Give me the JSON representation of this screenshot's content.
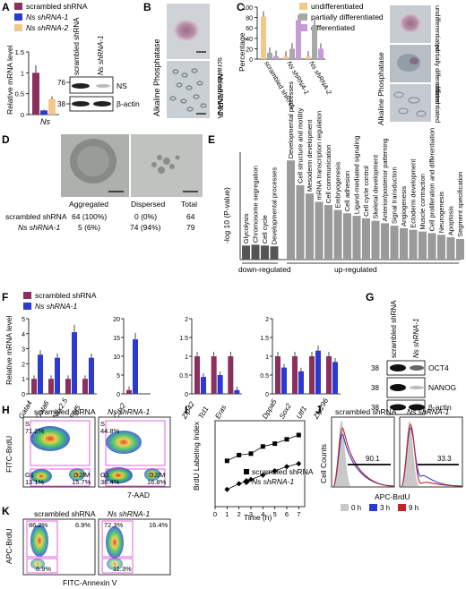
{
  "panels": [
    "A",
    "B",
    "C",
    "D",
    "E",
    "F",
    "G",
    "H",
    "I",
    "J",
    "K"
  ],
  "colors": {
    "scrambled": "#8b2f5c",
    "sh1": "#2b3bd1",
    "sh2": "#f1c88a",
    "undiff": "#f3c98b",
    "partial": "#a8a8a8",
    "diff": "#c79bd8",
    "bar_grey": "#9a9a9a",
    "bar_dark": "#555555"
  },
  "panelA": {
    "legend": [
      "scrambled shRNA",
      "Ns shRNA-1",
      "Ns shRNA-2"
    ],
    "ylabel": "Relative mRNA level",
    "xlabel": "Ns",
    "yticks": [
      "0",
      "0.5",
      "1",
      "1.5"
    ],
    "blot_lanes": [
      "scrambled shRNA",
      "Ns shRNA-1"
    ],
    "blot_rows": [
      "NS",
      "β-actin"
    ],
    "mw": [
      "76",
      "38"
    ]
  },
  "panelB": {
    "stain": "Alkaline Phosphatase",
    "rows": [
      "scrambled shRNA",
      "Ns shRNA-1"
    ]
  },
  "panelC": {
    "legend": [
      "undifferentiated",
      "partially differentiated",
      "differentiated"
    ],
    "ylabel": "Percentage",
    "yticks": [
      "0",
      "20",
      "40",
      "60",
      "80",
      "100"
    ],
    "groups": [
      "scrambled shRNA",
      "Ns shRNA-1",
      "Ns shRNA-2"
    ],
    "stain": "Alkaline Phosphatase",
    "side_labels": [
      "undifferentiated",
      "partially differentiated",
      "differentiated"
    ]
  },
  "panelD": {
    "headers": [
      "Aggregated",
      "Dispersed",
      "Total"
    ],
    "rows": [
      {
        "name": "scrambled shRNA",
        "agg": "64 (100%)",
        "disp": "0 (0%)",
        "total": "64"
      },
      {
        "name": "Ns shRNA-1",
        "agg": "5 (6%)",
        "disp": "74 (94%)",
        "total": "79"
      }
    ]
  },
  "panelE": {
    "ylabel": "-log 10 (P-value)",
    "down_label": "down-regulated",
    "up_label": "up-regulated",
    "down_terms": [
      "Glycolysis",
      "Chromosome segregation",
      "Cell cycle",
      "Developmental processes"
    ],
    "up_terms": [
      "Developmental processes",
      "Cell structure and motility",
      "Mesoderm development",
      "mRNA transcription regulation",
      "Cell communication",
      "Embryogenesis",
      "Cell adhesion",
      "Ligand-mediated signaling",
      "Cell cycle control",
      "Skeletal development",
      "Anterior/posterior patterning",
      "Signal transduction",
      "Angiogenesis",
      "Ectoderm development",
      "Muscle contraction",
      "Cell proliferation and differentiation",
      "Neurogenesis",
      "Apoptosis",
      "Segment specification"
    ]
  },
  "panelF": {
    "legend": [
      "scrambled shRNA",
      "Ns shRNA-1"
    ],
    "ylabel": "Relative mRNA level",
    "groups": [
      {
        "genes": [
          "Gata4",
          "Gata6",
          "Nkx2.5",
          "Fgf5"
        ],
        "yticks": [
          "0",
          "1",
          "2",
          "3",
          "4",
          "5"
        ]
      },
      {
        "genes": [
          "Cdx2"
        ],
        "yticks": [
          "0",
          "5",
          "10",
          "15",
          "20"
        ]
      },
      {
        "genes": [
          "Zfp42",
          "Tcl1",
          "Eras"
        ],
        "yticks": [
          "0",
          "0.5",
          "1",
          "1.5",
          "2"
        ]
      },
      {
        "genes": [
          "Dppa5",
          "Sox2",
          "Utf1",
          "Zfp296"
        ],
        "yticks": [
          "0",
          "0.5",
          "1",
          "1.5",
          "2"
        ]
      }
    ]
  },
  "panelG": {
    "lanes": [
      "scrambled shRNA",
      "Ns shRNA-1"
    ],
    "rows": [
      "OCT4",
      "NANOG",
      "β-actin"
    ],
    "mw": [
      "38",
      "38",
      "38"
    ]
  },
  "panelH": {
    "titles": [
      "scrambled shRNA",
      "Ns shRNA-1"
    ],
    "ylabel": "FITC-BrdU",
    "xlabel": "7-AAD",
    "plot1": {
      "S": "S",
      "S_val": "71.2%",
      "G1": "G1",
      "G1_val": "13.1%",
      "G2M": "G2/M",
      "G2M_val": "15.7%"
    },
    "plot2": {
      "S": "S",
      "S_val": "44.8%",
      "G1": "G1",
      "G1_val": "38.4%",
      "G2M": "G2/M",
      "G2M_val": "16.8%"
    }
  },
  "panelI": {
    "ylabel": "BrdU Labeling Index",
    "xlabel": "Time (h)",
    "xticks": [
      "0",
      "1",
      "2",
      "3",
      "4",
      "5",
      "6",
      "7"
    ],
    "legend": [
      "scrambled shRNA",
      "Ns shRNA-1"
    ]
  },
  "panelJ": {
    "titles": [
      "scrambled shRNA",
      "Ns shRNA-1"
    ],
    "ylabel": "Cell Counts",
    "xlabel": "APC-BrdU",
    "values": [
      "90.1",
      "33.3"
    ],
    "legend": [
      "0 h",
      "3 h",
      "9 h"
    ]
  },
  "panelK": {
    "titles": [
      "scrambled shRNA",
      "Ns shRNA-1"
    ],
    "ylabel": "APC-BrdU",
    "xlabel": "FITC-Annexin V",
    "plot1": {
      "tl": "86.2%",
      "tr": "6.9%",
      "bl": "6.9%"
    },
    "plot2": {
      "tl": "72.3%",
      "tr": "16.4%",
      "bl": "11.3%"
    }
  },
  "chart_data": [
    {
      "type": "bar",
      "panel": "A",
      "categories": [
        "Ns"
      ],
      "series": [
        {
          "name": "scrambled shRNA",
          "values": [
            1.0
          ]
        },
        {
          "name": "Ns shRNA-1",
          "values": [
            0.1
          ]
        },
        {
          "name": "Ns shRNA-2",
          "values": [
            0.37
          ]
        }
      ],
      "ylabel": "Relative mRNA level",
      "ylim": [
        0,
        1.5
      ]
    },
    {
      "type": "bar",
      "panel": "C",
      "categories": [
        "scrambled shRNA",
        "Ns shRNA-1",
        "Ns shRNA-2"
      ],
      "series": [
        {
          "name": "undifferentiated",
          "values": [
            82,
            5,
            5
          ]
        },
        {
          "name": "partially differentiated",
          "values": [
            12,
            20,
            65
          ]
        },
        {
          "name": "differentiated",
          "values": [
            6,
            75,
            20
          ]
        }
      ],
      "ylabel": "Percentage",
      "ylim": [
        0,
        100
      ]
    },
    {
      "type": "bar",
      "panel": "E",
      "categories": [
        "Glycolysis",
        "Chromosome segregation",
        "Cell cycle",
        "Developmental processes",
        "Developmental processes",
        "Cell structure and motility",
        "Mesoderm development",
        "mRNA transcription regulation",
        "Cell communication",
        "Embryogenesis",
        "Cell adhesion",
        "Ligand-mediated signaling",
        "Cell cycle control",
        "Skeletal development",
        "Anterior/posterior patterning",
        "Signal transduction",
        "Angiogenesis",
        "Ectoderm development",
        "Muscle contraction",
        "Cell proliferation and differentiation",
        "Neurogenesis",
        "Apoptosis",
        "Segment specification"
      ],
      "values": [
        1.7,
        1.8,
        1.7,
        1.6,
        12.0,
        9.0,
        8.0,
        7.0,
        6.6,
        6.0,
        5.6,
        5.3,
        5.0,
        4.7,
        4.4,
        4.1,
        3.8,
        3.6,
        3.4,
        3.2,
        3.0,
        2.7,
        2.5
      ],
      "ylabel": "-log 10 (P-value)"
    },
    {
      "type": "bar",
      "panel": "F1",
      "categories": [
        "Gata4",
        "Gata6",
        "Nkx2.5",
        "Fgf5"
      ],
      "series": [
        {
          "name": "scrambled shRNA",
          "values": [
            1.0,
            1.0,
            1.0,
            1.0
          ]
        },
        {
          "name": "Ns shRNA-1",
          "values": [
            2.6,
            2.4,
            4.1,
            2.4
          ]
        }
      ],
      "ylim": [
        0,
        5
      ]
    },
    {
      "type": "bar",
      "panel": "F2",
      "categories": [
        "Cdx2"
      ],
      "series": [
        {
          "name": "scrambled shRNA",
          "values": [
            1.0
          ]
        },
        {
          "name": "Ns shRNA-1",
          "values": [
            14.5
          ]
        }
      ],
      "ylim": [
        0,
        20
      ]
    },
    {
      "type": "bar",
      "panel": "F3",
      "categories": [
        "Zfp42",
        "Tcl1",
        "Eras"
      ],
      "series": [
        {
          "name": "scrambled shRNA",
          "values": [
            1.0,
            1.0,
            1.0
          ]
        },
        {
          "name": "Ns shRNA-1",
          "values": [
            0.45,
            0.5,
            0.1
          ]
        }
      ],
      "ylim": [
        0,
        2
      ]
    },
    {
      "type": "bar",
      "panel": "F4",
      "categories": [
        "Dppa5",
        "Sox2",
        "Utf1",
        "Zfp296"
      ],
      "series": [
        {
          "name": "scrambled shRNA",
          "values": [
            1.0,
            1.0,
            1.0,
            1.0
          ]
        },
        {
          "name": "Ns shRNA-1",
          "values": [
            0.7,
            0.6,
            1.15,
            0.85
          ]
        }
      ],
      "ylim": [
        0,
        2
      ]
    },
    {
      "type": "line",
      "panel": "I",
      "x": [
        1,
        2,
        3,
        4,
        5,
        6,
        7
      ],
      "series": [
        {
          "name": "scrambled shRNA",
          "values": [
            0.62,
            0.66,
            0.67,
            0.72,
            0.74,
            0.77,
            0.8
          ]
        },
        {
          "name": "Ns shRNA-1",
          "values": [
            0.42,
            0.46,
            0.49,
            0.52,
            0.55,
            0.58,
            0.6
          ]
        }
      ],
      "xlabel": "Time (h)",
      "ylabel": "BrdU Labeling Index"
    }
  ]
}
